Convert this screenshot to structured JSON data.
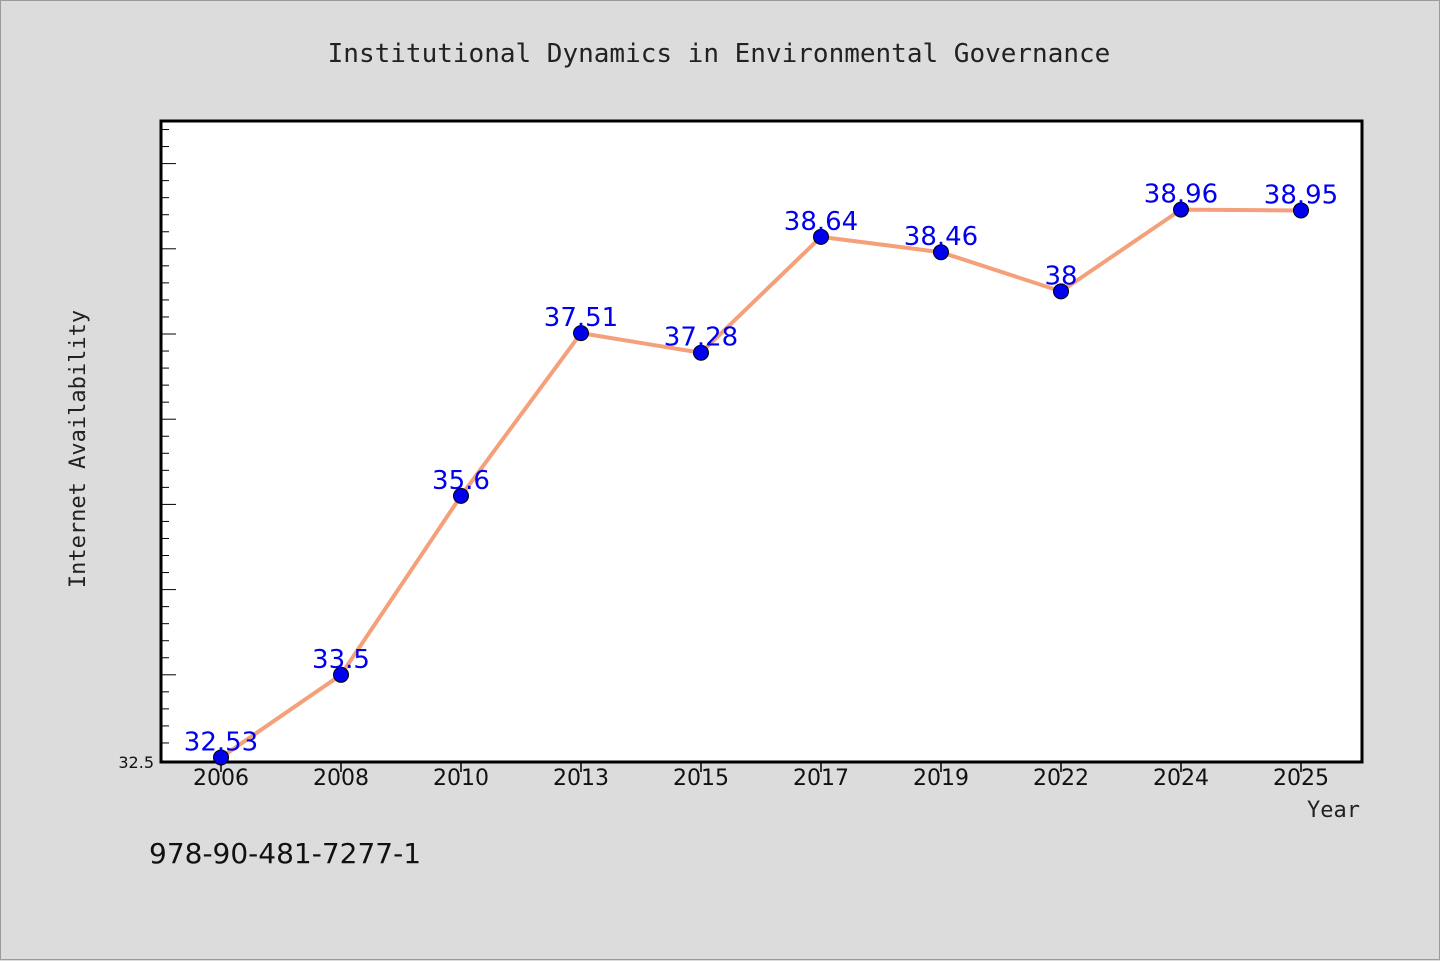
{
  "chart_data": {
    "type": "line",
    "title": "Institutional Dynamics in Environmental Governance",
    "xlabel": "Year",
    "ylabel": "Internet Availability",
    "categories": [
      "2006",
      "2008",
      "2010",
      "2013",
      "2015",
      "2017",
      "2019",
      "2022",
      "2024",
      "2025"
    ],
    "series": [
      {
        "values": [
          32.53,
          33.5,
          35.6,
          37.51,
          37.28,
          38.64,
          38.46,
          38,
          38.96,
          38.95
        ],
        "labels": [
          "32.53",
          "33.5",
          "35.6",
          "37.51",
          "37.28",
          "38.64",
          "38.46",
          "38",
          "38.96",
          "38.95"
        ],
        "line_color": "#f4a07a",
        "marker_color": "#0000ee"
      }
    ],
    "ylim": [
      32.5,
      40.0
    ],
    "ytick_labels": [
      "32.5"
    ],
    "grid": false,
    "legend": "none"
  },
  "footer": {
    "isbn": "978-90-481-7277-1"
  }
}
